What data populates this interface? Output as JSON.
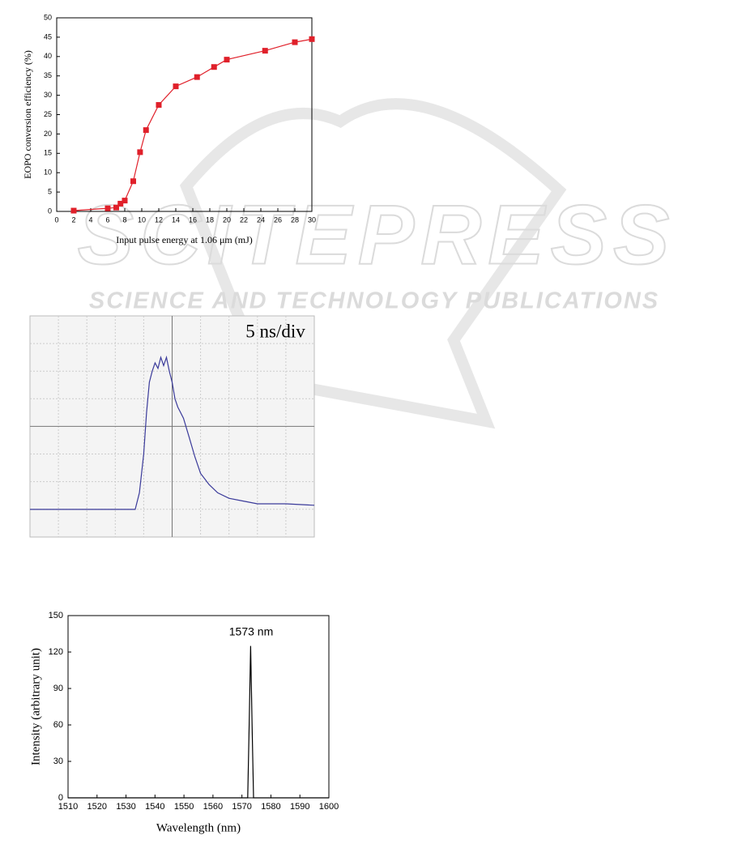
{
  "watermark": {
    "title": "SCITEPRESS",
    "subtitle": "SCIENCE AND TECHNOLOGY PUBLICATIONS"
  },
  "chart_data": [
    {
      "type": "line",
      "marker": "square",
      "color": "#e0202a",
      "x_label": "Input pulse energy at 1.06 μm (mJ)",
      "y_label": "EOPO conversion efficiency (%)",
      "x": [
        2,
        6,
        7,
        7.5,
        8,
        9,
        9.8,
        10.5,
        12,
        14,
        16.5,
        18.5,
        20,
        24.5,
        28,
        30
      ],
      "series": [
        {
          "color": "#e0202a",
          "values": [
            0.2,
            0.8,
            1,
            2,
            2.8,
            7.8,
            15.3,
            21,
            27.5,
            32.3,
            34.7,
            37.3,
            39.2,
            41.5,
            43.7,
            44.5
          ]
        }
      ],
      "xlim": [
        0,
        30
      ],
      "xticks": [
        0,
        2,
        4,
        6,
        8,
        10,
        12,
        14,
        16,
        18,
        20,
        22,
        24,
        26,
        28,
        30
      ],
      "ylim": [
        0,
        50
      ],
      "yticks": [
        0,
        5,
        10,
        15,
        20,
        25,
        30,
        35,
        40,
        45,
        50
      ]
    },
    {
      "type": "line",
      "annotation": "5 ns/div",
      "color": "#3a3a9a",
      "x": [
        0,
        1,
        2,
        3,
        3.7,
        3.85,
        4.0,
        4.1,
        4.2,
        4.3,
        4.4,
        4.5,
        4.6,
        4.7,
        4.8,
        4.9,
        5.0,
        5.1,
        5.2,
        5.4,
        5.6,
        5.8,
        6.0,
        6.3,
        6.6,
        7.0,
        7.5,
        8,
        9,
        10
      ],
      "series": [
        {
          "color": "#3a3a9a",
          "values": [
            1.0,
            1.0,
            1.0,
            1.0,
            1.0,
            1.6,
            3.0,
            4.5,
            5.6,
            6.0,
            6.3,
            6.1,
            6.5,
            6.2,
            6.5,
            6.0,
            5.6,
            5.0,
            4.7,
            4.3,
            3.6,
            2.9,
            2.3,
            1.9,
            1.6,
            1.4,
            1.3,
            1.2,
            1.2,
            1.15
          ]
        }
      ],
      "xlim": [
        0,
        10
      ],
      "ylim": [
        0,
        8
      ]
    },
    {
      "type": "line",
      "annotation": "1573 nm",
      "color": "#000000",
      "x_label": "Wavelength (nm)",
      "y_label": "Intensity (arbitrary unit)",
      "x": [
        1510,
        1572,
        1572.5,
        1573,
        1573.5,
        1574,
        1600
      ],
      "series": [
        {
          "color": "#000000",
          "values": [
            0,
            0,
            60,
            125,
            60,
            0,
            0
          ]
        }
      ],
      "xlim": [
        1510,
        1600
      ],
      "xticks": [
        1510,
        1520,
        1530,
        1540,
        1550,
        1560,
        1570,
        1580,
        1590,
        1600
      ],
      "ylim": [
        0,
        150
      ],
      "yticks": [
        0,
        30,
        60,
        90,
        120,
        150
      ]
    }
  ]
}
